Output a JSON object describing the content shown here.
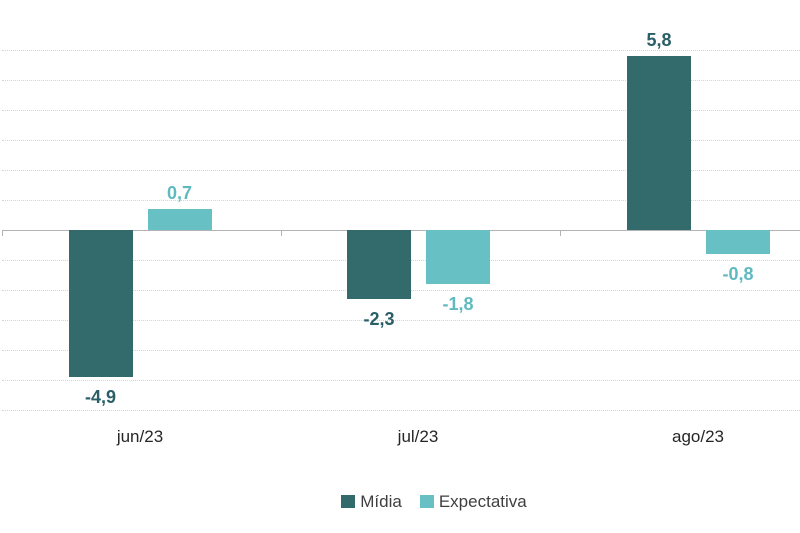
{
  "chart_data": {
    "type": "bar",
    "title": "",
    "xlabel": "",
    "ylabel": "",
    "categories": [
      "jun/23",
      "jul/23",
      "ago/23"
    ],
    "series": [
      {
        "name": "Mídia",
        "color": "#336a6c",
        "label_color": "#2b5f68",
        "values": [
          -4.9,
          -2.3,
          5.8
        ],
        "value_labels": [
          "-4,9",
          "-2,3",
          "5,8"
        ]
      },
      {
        "name": "Expectativa",
        "color": "#66c0c4",
        "label_color": "#5fbac0",
        "values": [
          0.7,
          -1.8,
          -0.8
        ],
        "value_labels": [
          "0,7",
          "-1,8",
          "-0,8"
        ]
      }
    ],
    "ylim": [
      -6,
      7
    ],
    "gridline_interval": 1,
    "grid": true,
    "legend_position": "bottom",
    "decimal_separator": ","
  },
  "colors": {
    "background": "#ffffff",
    "gridline": "#d4d4d4",
    "axis": "#b3b3b3",
    "category_label": "#262626",
    "legend_text": "#3f3f3f"
  }
}
